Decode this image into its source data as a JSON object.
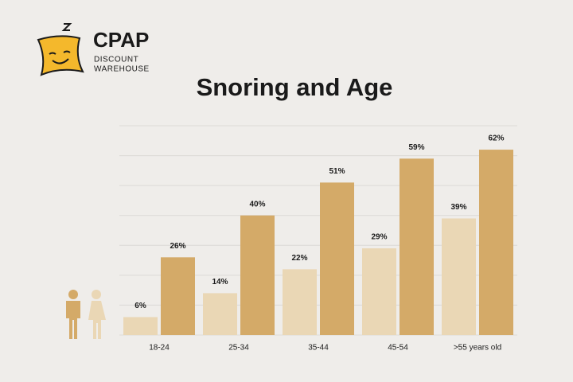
{
  "brand": {
    "name": "CPAP",
    "line1": "DISCOUNT",
    "line2": "WAREHOUSE"
  },
  "chart_data": {
    "type": "bar",
    "title": "Snoring and Age",
    "categories": [
      "18-24",
      "25-34",
      "35-44",
      "45-54",
      ">55 years old"
    ],
    "series": [
      {
        "color": "#ead7b5",
        "values": [
          6,
          14,
          22,
          29,
          39
        ],
        "value_labels": [
          "6%",
          "14%",
          "22%",
          "29%",
          "39%"
        ]
      },
      {
        "color": "#d4aa68",
        "values": [
          26,
          40,
          51,
          59,
          62
        ],
        "value_labels": [
          "26%",
          "40%",
          "51%",
          "59%",
          "62%"
        ]
      }
    ],
    "ylim": [
      0,
      70
    ],
    "yticks": [
      0,
      10,
      20,
      30,
      40,
      50,
      60,
      70
    ],
    "grid": true
  }
}
